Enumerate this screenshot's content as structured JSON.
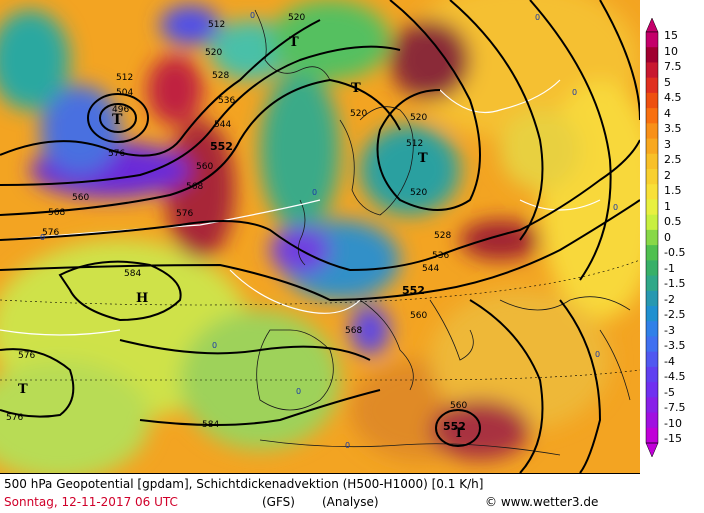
{
  "map": {
    "contour_labels": [
      "512",
      "520",
      "528",
      "536",
      "544",
      "552",
      "560",
      "568",
      "576",
      "584",
      "496",
      "504"
    ],
    "pressure_markers": {
      "low": "T",
      "high": "H"
    },
    "low_labels": [
      "T",
      "T",
      "T",
      "T",
      "T"
    ],
    "high_labels": [
      "H"
    ]
  },
  "colorbar": {
    "labels": [
      "15",
      "10",
      "7.5",
      "5",
      "4.5",
      "4",
      "3.5",
      "3",
      "2.5",
      "2",
      "1.5",
      "1",
      "0.5",
      "0",
      "-0.5",
      "-1",
      "-1.5",
      "-2",
      "-2.5",
      "-3",
      "-3.5",
      "-4",
      "-4.5",
      "-5",
      "-7.5",
      "-10",
      "-15"
    ],
    "colors": [
      "#c4006a",
      "#a00030",
      "#c81830",
      "#e03020",
      "#ee5010",
      "#f87010",
      "#f89018",
      "#f8a820",
      "#f8c028",
      "#f8d030",
      "#f8e038",
      "#e8f040",
      "#c8f040",
      "#88d848",
      "#50c050",
      "#38b068",
      "#30a888",
      "#2898b0",
      "#2090d0",
      "#3080e8",
      "#4070f0",
      "#5058f0",
      "#6040f0",
      "#7030f0",
      "#8820e8",
      "#a010e0",
      "#c000d8"
    ]
  },
  "caption": {
    "line1": "500 hPa Geopotential [gpdam], Schichtdickenadvektion (H500-H1000) [0.1 K/h]",
    "date": "Sonntag, 12-11-2017  06 UTC",
    "model": "(GFS)",
    "kind": "(Analyse)",
    "copyright": "www.wetter3.de"
  }
}
